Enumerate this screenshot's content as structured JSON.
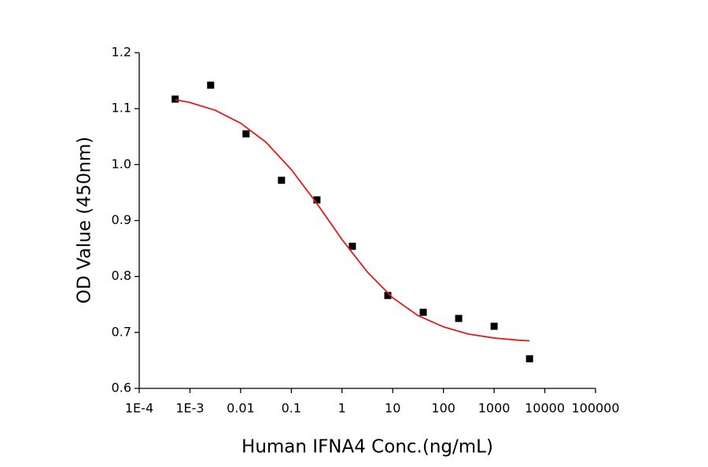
{
  "chart_data": {
    "type": "scatter",
    "x_label": "Human IFNA4 Conc.(ng/mL)",
    "y_label": "OD Value (450nm)",
    "x_log": true,
    "xlim": [
      0.0001,
      100000
    ],
    "xticks": [
      {
        "value": 0.0001,
        "label": "1E-4"
      },
      {
        "value": 0.001,
        "label": "1E-3"
      },
      0.01,
      0.1,
      1,
      10,
      100,
      1000,
      10000,
      100000
    ],
    "ylim": [
      0.6,
      1.2
    ],
    "yticks": [
      0.6,
      0.7,
      0.8,
      0.9,
      {
        "value": 1,
        "label": "1.0"
      },
      1.1,
      1.2
    ],
    "series": [
      {
        "color": "#000000",
        "marker": "square",
        "x": [
          0.000512,
          0.00256,
          0.0128,
          0.064,
          0.32,
          1.6,
          8,
          40,
          200,
          1000,
          5000
        ],
        "values": [
          1.117,
          1.142,
          1.055,
          0.972,
          0.937,
          0.854,
          0.766,
          0.736,
          0.725,
          0.711,
          0.653
        ]
      },
      {
        "color": "#e31a1c",
        "line": true,
        "x": [
          0.000512,
          0.001,
          0.00316,
          0.01,
          0.0316,
          0.1,
          0.316,
          1,
          3.16,
          10,
          31.6,
          100,
          316,
          1000,
          3162,
          5000
        ],
        "values": [
          1.116,
          1.111,
          1.097,
          1.074,
          1.04,
          0.991,
          0.931,
          0.866,
          0.808,
          0.762,
          0.73,
          0.71,
          0.697,
          0.69,
          0.686,
          0.685
        ]
      }
    ]
  }
}
